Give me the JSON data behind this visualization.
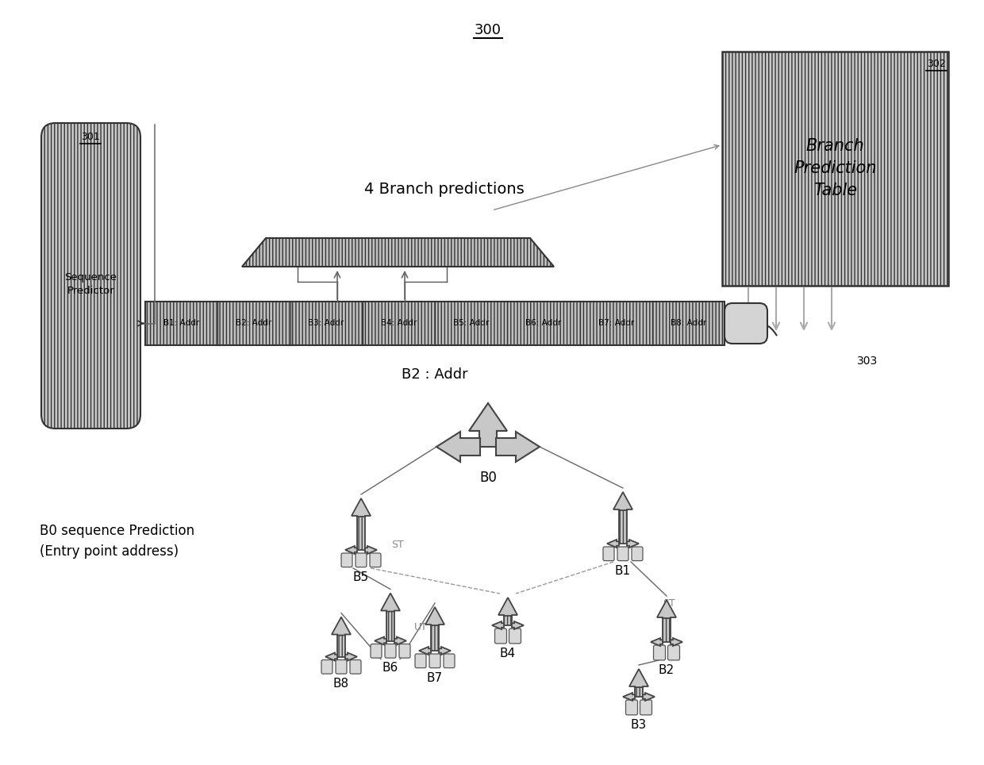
{
  "bg_color": "#ffffff",
  "title_label": "300",
  "label_301": "301",
  "label_302": "302",
  "label_303": "303",
  "bpt_text": "Branch\nPrediction\nTable",
  "seq_pred_text": "Sequence\nPredictor",
  "buf_cells": [
    "B1: Addr",
    "B2: Addr",
    "B3: Addr",
    "B4: Addr",
    "B5: Addr",
    "B6: Addr",
    "B7: Addr",
    "B8: Addr"
  ],
  "label_b2addr": "B2 : Addr",
  "label_4bp": "4 Branch predictions",
  "label_b0seq": "B0 sequence Prediction\n(Entry point address)",
  "hatch_fc": "#c8c8c8",
  "edge_color": "#333333",
  "hatch": "||||"
}
